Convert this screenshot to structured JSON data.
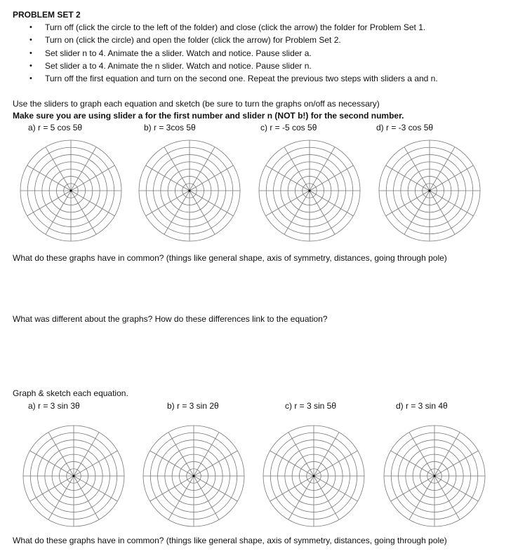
{
  "title": "PROBLEM SET 2",
  "bullets": [
    "Turn off (click the circle to the left of the folder) and close (click the arrow) the folder for Problem Set 1.",
    "Turn on (click the circle) and open the folder (click the arrow) for Problem Set 2.",
    "Set slider n to 4.  Animate the a slider. Watch and notice.  Pause slider a.",
    "Set slider a to 4.  Animate the n slider. Watch and notice.  Pause slider n.",
    "Turn off the first equation and turn on the second one.  Repeat the previous two steps with sliders a and n."
  ],
  "instruction1": "Use the sliders to graph each equation and sketch (be sure to turn the graphs on/off as necessary)",
  "instruction2": "Make sure you are using slider a for the first number and slider n (NOT b!) for the second number.",
  "set1": [
    "a)   r = 5 cos 5θ",
    "b) r = 3cos 5θ",
    "c) r = -5 cos 5θ",
    "d) r = -3 cos 5θ"
  ],
  "q1": "What do these graphs have in common? (things like general shape, axis of symmetry, distances, going through pole)",
  "q2": "What was different about the graphs? How do these differences link to the equation?",
  "graph_heading": "Graph & sketch each equation.",
  "set2": [
    "a)   r = 3 sin 3θ",
    "b) r = 3 sin 2θ",
    "c) r = 3 sin 5θ",
    "d) r = 3 sin 4θ"
  ],
  "q3": "What do these graphs have in common? (things like general shape, axis of symmetry, distances, going through pole)",
  "bullet_glyph": "•"
}
